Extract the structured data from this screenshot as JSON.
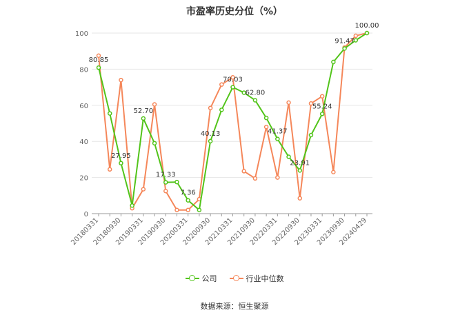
{
  "chart_data": {
    "type": "line",
    "title": "市盈率历史分位（%）",
    "x": [
      "20180331",
      "20180630",
      "20180930",
      "20181231",
      "20190331",
      "20190630",
      "20190930",
      "20191231",
      "20200331",
      "20200630",
      "20200930",
      "20201231",
      "20210331",
      "20210630",
      "20210930",
      "20211231",
      "20220331",
      "20220630",
      "20220930",
      "20221231",
      "20230331",
      "20230630",
      "20230930",
      "20231231",
      "20240429"
    ],
    "x_tick_labels": [
      "20180331",
      "20180930",
      "20190331",
      "20190930",
      "20200331",
      "20200930",
      "20210331",
      "20210930",
      "20220331",
      "20220930",
      "20230331",
      "20230930",
      "20240429"
    ],
    "ylim": [
      0,
      100
    ],
    "yticks": [
      0,
      20,
      40,
      60,
      80,
      100
    ],
    "grid": true,
    "legend_position": "bottom",
    "series": [
      {
        "name": "公司",
        "color": "#52c41a",
        "values": [
          80.85,
          55.5,
          27.95,
          4.5,
          52.7,
          39.0,
          17.33,
          17.5,
          7.36,
          2.0,
          40.13,
          57.5,
          70.03,
          67.0,
          62.8,
          53.0,
          41.37,
          31.5,
          23.91,
          43.5,
          55.24,
          84.0,
          91.47,
          96.0,
          100.0
        ],
        "labels": [
          "80.85",
          null,
          "27.95",
          null,
          "52.70",
          null,
          "17.33",
          null,
          "7.36",
          null,
          "40.13",
          null,
          "70.03",
          null,
          "62.80",
          null,
          "41.37",
          null,
          "23.91",
          null,
          "55.24",
          null,
          "91.47",
          null,
          "100.00"
        ]
      },
      {
        "name": "行业中位数",
        "color": "#f5875a",
        "values": [
          87.5,
          24.5,
          74.0,
          3.0,
          13.5,
          60.5,
          12.5,
          2.0,
          2.0,
          8.0,
          58.5,
          71.5,
          75.5,
          23.5,
          19.5,
          48.0,
          20.0,
          61.5,
          8.5,
          61.0,
          65.0,
          23.0,
          92.0,
          98.5,
          100.0
        ]
      }
    ]
  },
  "footer": {
    "source": "数据来源：恒生聚源"
  }
}
